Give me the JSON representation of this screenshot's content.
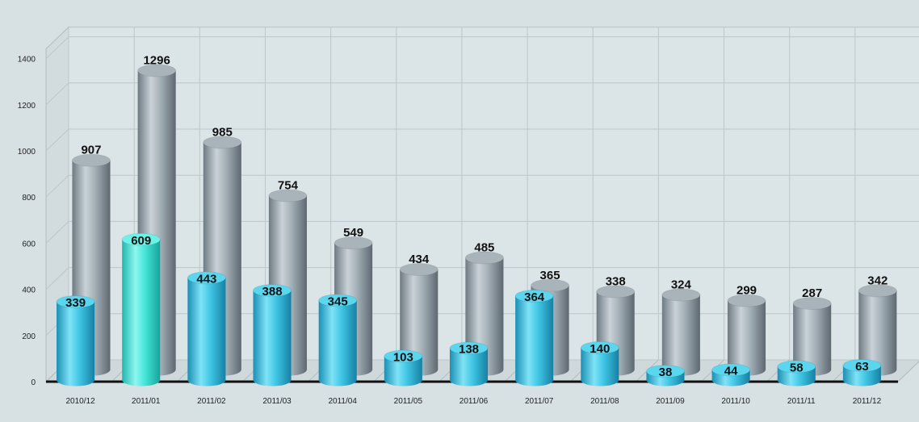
{
  "chart_data": {
    "type": "bar",
    "categories": [
      "2010/12",
      "2011/01",
      "2011/02",
      "2011/03",
      "2011/04",
      "2011/05",
      "2011/06",
      "2011/07",
      "2011/08",
      "2011/09",
      "2011/10",
      "2011/11",
      "2011/12"
    ],
    "series": [
      {
        "values": [
          339,
          609,
          443,
          388,
          345,
          103,
          138,
          364,
          140,
          38,
          44,
          58,
          63
        ],
        "color": "#3fc6e4"
      },
      {
        "values": [
          907,
          1296,
          985,
          754,
          549,
          434,
          485,
          365,
          338,
          324,
          299,
          287,
          342
        ],
        "color": "#8f9ca4"
      }
    ],
    "highlight": {
      "series": 0,
      "index": 1,
      "color": "#44e6d8"
    },
    "yticks": [
      0,
      200,
      400,
      600,
      800,
      1000,
      1200,
      1400
    ],
    "ylim": [
      0,
      1400
    ],
    "grid": true,
    "title": "",
    "xlabel": "",
    "ylabel": "",
    "style": "3d-cylinder"
  }
}
